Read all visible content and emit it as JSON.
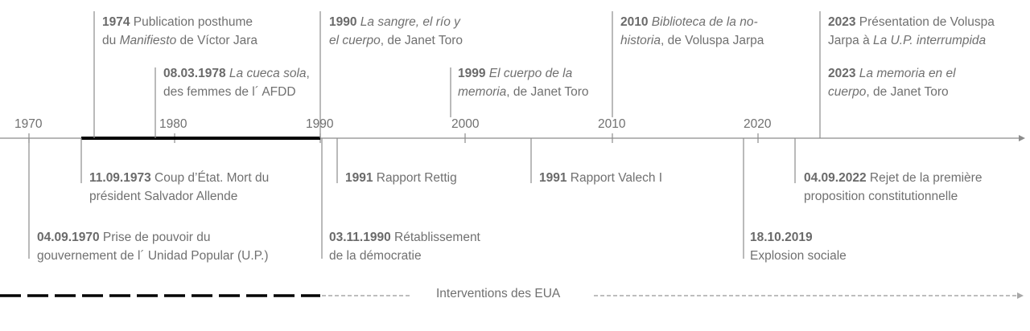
{
  "axis": {
    "years": [
      "1970",
      "1980",
      "1990",
      "2000",
      "2010",
      "2020"
    ]
  },
  "events_above": [
    {
      "date": "1974",
      "parts": [
        {
          "t": " Publication posthume"
        }
      ],
      "line2": [
        {
          "t": "du "
        },
        {
          "t": "Manifiesto",
          "i": true
        },
        {
          "t": " de Víctor Jara"
        }
      ]
    },
    {
      "date": "08.03.1978",
      "parts": [
        {
          "t": " "
        },
        {
          "t": "La cueca sola",
          "i": true
        },
        {
          "t": ","
        }
      ],
      "line2": [
        {
          "t": "des femmes de l´ AFDD"
        }
      ]
    },
    {
      "date": "1990",
      "parts": [
        {
          "t": " "
        },
        {
          "t": "La sangre, el río y",
          "i": true
        }
      ],
      "line2": [
        {
          "t": "el cuerpo",
          "i": true
        },
        {
          "t": ", de Janet Toro"
        }
      ]
    },
    {
      "date": "1999",
      "parts": [
        {
          "t": " "
        },
        {
          "t": "El cuerpo de la",
          "i": true
        }
      ],
      "line2": [
        {
          "t": "memoria",
          "i": true
        },
        {
          "t": ", de Janet Toro"
        }
      ]
    },
    {
      "date": "2010",
      "parts": [
        {
          "t": " "
        },
        {
          "t": "Biblioteca de la no-",
          "i": true
        }
      ],
      "line2": [
        {
          "t": "historia",
          "i": true
        },
        {
          "t": ", de Voluspa Jarpa"
        }
      ]
    },
    {
      "date": "2023",
      "parts": [
        {
          "t": " Présentation de Voluspa"
        }
      ],
      "line2": [
        {
          "t": "Jarpa à "
        },
        {
          "t": "La U.P. interrumpida",
          "i": true
        }
      ]
    },
    {
      "date": "2023",
      "parts": [
        {
          "t": " "
        },
        {
          "t": "La memoria en el",
          "i": true
        }
      ],
      "line2": [
        {
          "t": "cuerpo",
          "i": true
        },
        {
          "t": ", de Janet Toro"
        }
      ]
    }
  ],
  "events_below": [
    {
      "date": "11.09.1973",
      "parts": [
        {
          "t": " Coup d’État. Mort du"
        }
      ],
      "line2": [
        {
          "t": "président Salvador Allende"
        }
      ]
    },
    {
      "date": "1991",
      "parts": [
        {
          "t": " Rapport Rettig"
        }
      ],
      "line2": []
    },
    {
      "date": "1991",
      "parts": [
        {
          "t": " Rapport Valech I"
        }
      ],
      "line2": []
    },
    {
      "date": "04.09.2022",
      "parts": [
        {
          "t": " Rejet de la première"
        }
      ],
      "line2": [
        {
          "t": "proposition constitutionnelle"
        }
      ]
    },
    {
      "date": "04.09.1970",
      "parts": [
        {
          "t": " Prise de pouvoir du"
        }
      ],
      "line2": [
        {
          "t": "gouvernement de l´ Unidad Popular (U.P.)"
        }
      ]
    },
    {
      "date": "03.11.1990",
      "parts": [
        {
          "t": " Rétablissement"
        }
      ],
      "line2": [
        {
          "t": "de la démocratie"
        }
      ]
    },
    {
      "date": "18.10.2019",
      "parts": [],
      "line2": [
        {
          "t": "Explosion sociale"
        }
      ]
    }
  ],
  "legend": {
    "label": "Interventions des EUA"
  },
  "colors": {
    "axis": "#8c8c8c",
    "dictatorship_bar": "#000000",
    "connector": "#8c8c8c",
    "dashed_light": "#a8a8a8"
  }
}
